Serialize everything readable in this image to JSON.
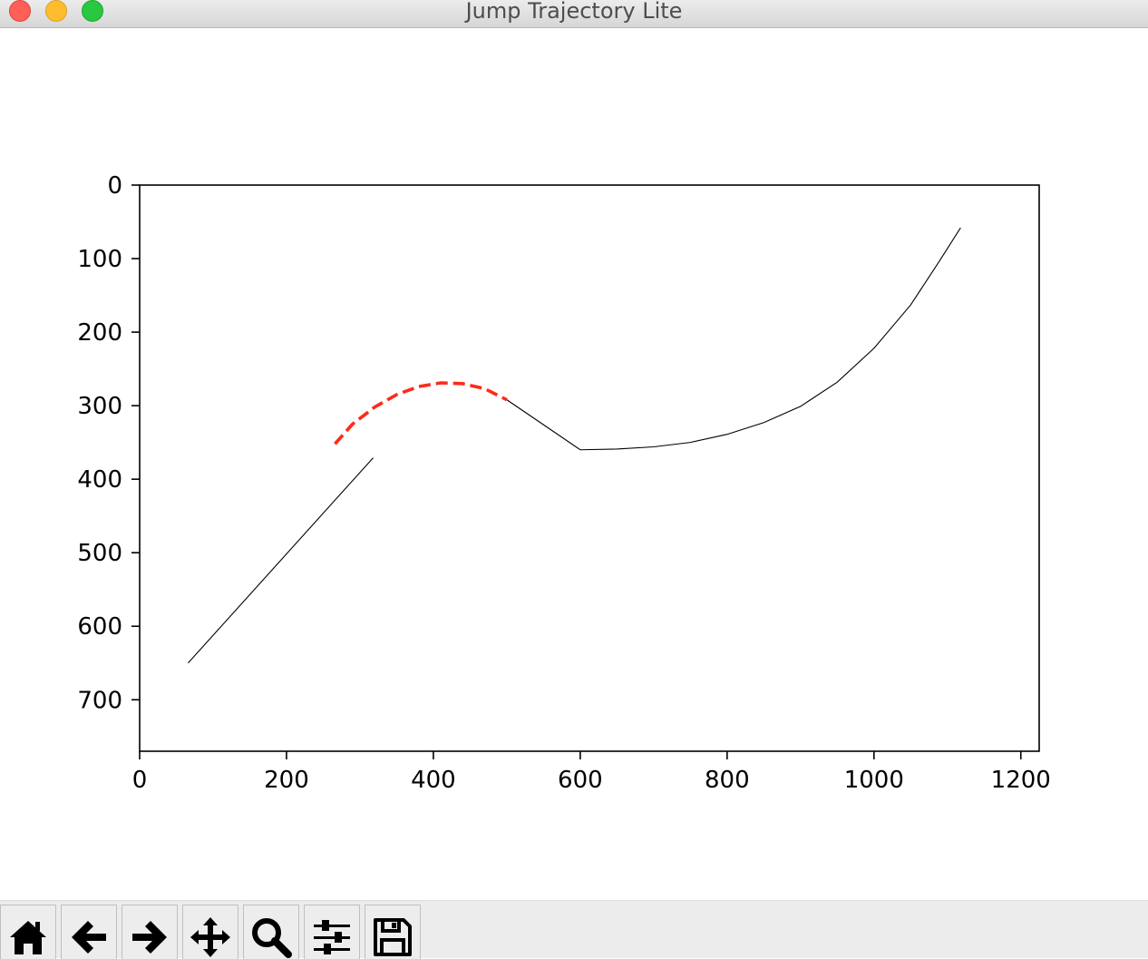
{
  "window": {
    "title": "Jump Trajectory Lite"
  },
  "toolbar": {
    "buttons": [
      {
        "name": "home-button",
        "icon": "home-icon"
      },
      {
        "name": "back-button",
        "icon": "arrow-left-icon"
      },
      {
        "name": "forward-button",
        "icon": "arrow-right-icon"
      },
      {
        "name": "pan-button",
        "icon": "move-icon"
      },
      {
        "name": "zoom-button",
        "icon": "magnifier-icon"
      },
      {
        "name": "configure-subplots-button",
        "icon": "sliders-icon"
      },
      {
        "name": "save-button",
        "icon": "floppy-disk-icon"
      }
    ]
  },
  "chart_data": {
    "type": "line",
    "title": "",
    "xlabel": "",
    "ylabel": "",
    "xlim": [
      0,
      1225
    ],
    "ylim": [
      770,
      0
    ],
    "y_inverted": true,
    "grid": false,
    "xticks": [
      0,
      200,
      400,
      600,
      800,
      1000,
      1200
    ],
    "yticks": [
      0,
      100,
      200,
      300,
      400,
      500,
      600,
      700
    ],
    "series": [
      {
        "style": "solid",
        "color": "#000000",
        "x": [
          66,
          318
        ],
        "y": [
          650,
          371
        ]
      },
      {
        "style": "dashed",
        "color": "#ff2a1a",
        "x": [
          266,
          290,
          320,
          350,
          380,
          410,
          440,
          470,
          500
        ],
        "y": [
          352,
          325,
          302,
          285,
          274,
          269,
          270,
          277,
          292
        ]
      },
      {
        "style": "solid",
        "color": "#000000",
        "x": [
          500,
          600,
          650,
          700,
          750,
          800,
          850,
          900,
          950,
          1000,
          1050,
          1090,
          1118
        ],
        "y": [
          292,
          360,
          359,
          356,
          350,
          339,
          323,
          301,
          268,
          222,
          163,
          102,
          58
        ]
      }
    ]
  }
}
